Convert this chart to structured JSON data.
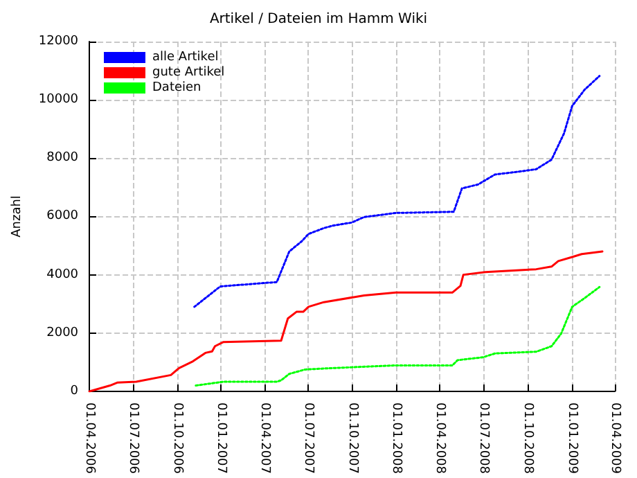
{
  "chart_data": {
    "type": "line",
    "title": "Artikel / Dateien im Hamm Wiki",
    "ylabel": "Anzahl",
    "xlim": [
      "2006-04-01",
      "2009-04-01"
    ],
    "xticks": [
      {
        "value": "2006-04-01",
        "label": "01.04.2006"
      },
      {
        "value": "2006-07-01",
        "label": "01.07.2006"
      },
      {
        "value": "2006-10-01",
        "label": "01.10.2006"
      },
      {
        "value": "2007-01-01",
        "label": "01.01.2007"
      },
      {
        "value": "2007-04-01",
        "label": "01.04.2007"
      },
      {
        "value": "2007-07-01",
        "label": "01.07.2007"
      },
      {
        "value": "2007-10-01",
        "label": "01.10.2007"
      },
      {
        "value": "2008-01-01",
        "label": "01.01.2008"
      },
      {
        "value": "2008-04-01",
        "label": "01.04.2008"
      },
      {
        "value": "2008-07-01",
        "label": "01.07.2008"
      },
      {
        "value": "2008-10-01",
        "label": "01.10.2008"
      },
      {
        "value": "2009-01-01",
        "label": "01.01.2009"
      },
      {
        "value": "2009-04-01",
        "label": "01.04.2009"
      }
    ],
    "ylim": [
      0,
      12000
    ],
    "yticks": [
      0,
      2000,
      4000,
      6000,
      8000,
      10000,
      12000
    ],
    "grid": true,
    "legend": "top left",
    "marker": "none",
    "series": [
      {
        "name": "alle Artikel",
        "color": "#0000ff",
        "line_style": "dotted",
        "x": [
          "2006-11-06",
          "2006-12-30",
          "2007-04-27",
          "2007-05-23",
          "2007-06-18",
          "2007-07-02",
          "2007-08-03",
          "2007-08-23",
          "2007-09-30",
          "2007-10-26",
          "2007-12-31",
          "2008-04-30",
          "2008-05-17",
          "2008-06-20",
          "2008-07-25",
          "2008-09-09",
          "2008-10-19",
          "2008-11-20",
          "2008-12-16",
          "2009-01-02",
          "2009-01-28",
          "2009-02-28"
        ],
        "values": [
          2900,
          3600,
          3750,
          4800,
          5150,
          5400,
          5600,
          5690,
          5790,
          5980,
          6120,
          6160,
          6960,
          7100,
          7440,
          7530,
          7620,
          7950,
          8850,
          9790,
          10350,
          10820
        ]
      },
      {
        "name": "gute Artikel",
        "color": "#ff0000",
        "line_style": "solid",
        "x": [
          "2006-04-01",
          "2006-05-14",
          "2006-05-29",
          "2006-07-08",
          "2006-09-18",
          "2006-10-05",
          "2006-11-03",
          "2006-11-29",
          "2006-12-13",
          "2006-12-19",
          "2007-01-05",
          "2007-05-06",
          "2007-05-20",
          "2007-06-07",
          "2007-06-21",
          "2007-07-02",
          "2007-08-03",
          "2007-10-26",
          "2007-12-31",
          "2008-04-27",
          "2008-05-14",
          "2008-05-20",
          "2008-07-05",
          "2008-10-19",
          "2008-11-20",
          "2008-12-04",
          "2009-01-02",
          "2009-01-22",
          "2009-03-06"
        ],
        "values": [
          0,
          200,
          300,
          330,
          560,
          800,
          1030,
          1320,
          1370,
          1550,
          1690,
          1740,
          2500,
          2730,
          2730,
          2900,
          3060,
          3290,
          3390,
          3390,
          3620,
          4000,
          4090,
          4190,
          4280,
          4470,
          4610,
          4710,
          4800
        ]
      },
      {
        "name": "Dateien",
        "color": "#00ff00",
        "line_style": "dotted",
        "x": [
          "2006-11-09",
          "2007-01-05",
          "2007-04-27",
          "2007-05-06",
          "2007-05-23",
          "2007-06-25",
          "2007-08-23",
          "2007-12-31",
          "2008-04-27",
          "2008-05-08",
          "2008-06-30",
          "2008-07-25",
          "2008-10-19",
          "2008-11-20",
          "2008-12-10",
          "2009-01-02",
          "2009-01-28",
          "2009-02-28"
        ],
        "values": [
          200,
          330,
          330,
          380,
          600,
          750,
          800,
          890,
          890,
          1070,
          1170,
          1300,
          1360,
          1550,
          1980,
          2900,
          3200,
          3580
        ]
      }
    ]
  }
}
